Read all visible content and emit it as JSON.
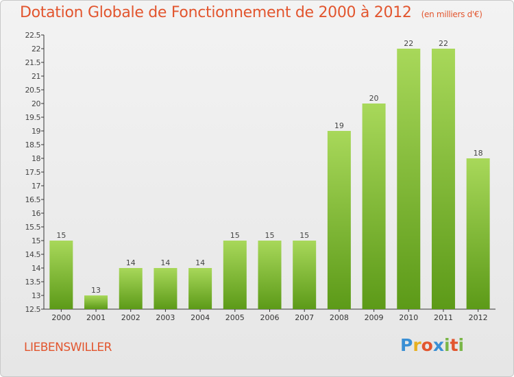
{
  "title": "Dotation Globale de Fonctionnement de 2000 à 2012",
  "subtitle": "(en milliers d'€)",
  "commune": "LIEBENSWILLER",
  "logo": {
    "letters": [
      "P",
      "r",
      "o",
      "x",
      "i",
      "t",
      "i"
    ],
    "colors": [
      "#3a8fd4",
      "#e8b020",
      "#e2552e",
      "#3a8fd4",
      "#7ab648",
      "#e2552e",
      "#7ab648"
    ]
  },
  "colors": {
    "bar_light": "#a8d85a",
    "bar_dark": "#5c9a18",
    "title": "#e2552e"
  },
  "chart_data": {
    "type": "bar",
    "categories": [
      "2000",
      "2001",
      "2002",
      "2003",
      "2004",
      "2005",
      "2006",
      "2007",
      "2008",
      "2009",
      "2010",
      "2011",
      "2012"
    ],
    "values": [
      15,
      13,
      14,
      14,
      14,
      15,
      15,
      15,
      19,
      20,
      22,
      22,
      18
    ],
    "data_labels": [
      "15",
      "13",
      "14",
      "14",
      "14",
      "15",
      "15",
      "15",
      "19",
      "20",
      "22",
      "22",
      "18"
    ],
    "ylim": [
      12.5,
      22.5
    ],
    "yticks": [
      12.5,
      13,
      13.5,
      14,
      14.5,
      15,
      15.5,
      16,
      16.5,
      17,
      17.5,
      18,
      18.5,
      19,
      19.5,
      20,
      20.5,
      21,
      21.5,
      22,
      22.5
    ],
    "ytick_labels": [
      "12.5",
      "13",
      "13.5",
      "14",
      "14.5",
      "15",
      "15.5",
      "16",
      "16.5",
      "17",
      "17.5",
      "18",
      "18.5",
      "19",
      "19.5",
      "20",
      "20.5",
      "21",
      "21.5",
      "22",
      "22.5"
    ],
    "grid": false,
    "legend": "none"
  }
}
